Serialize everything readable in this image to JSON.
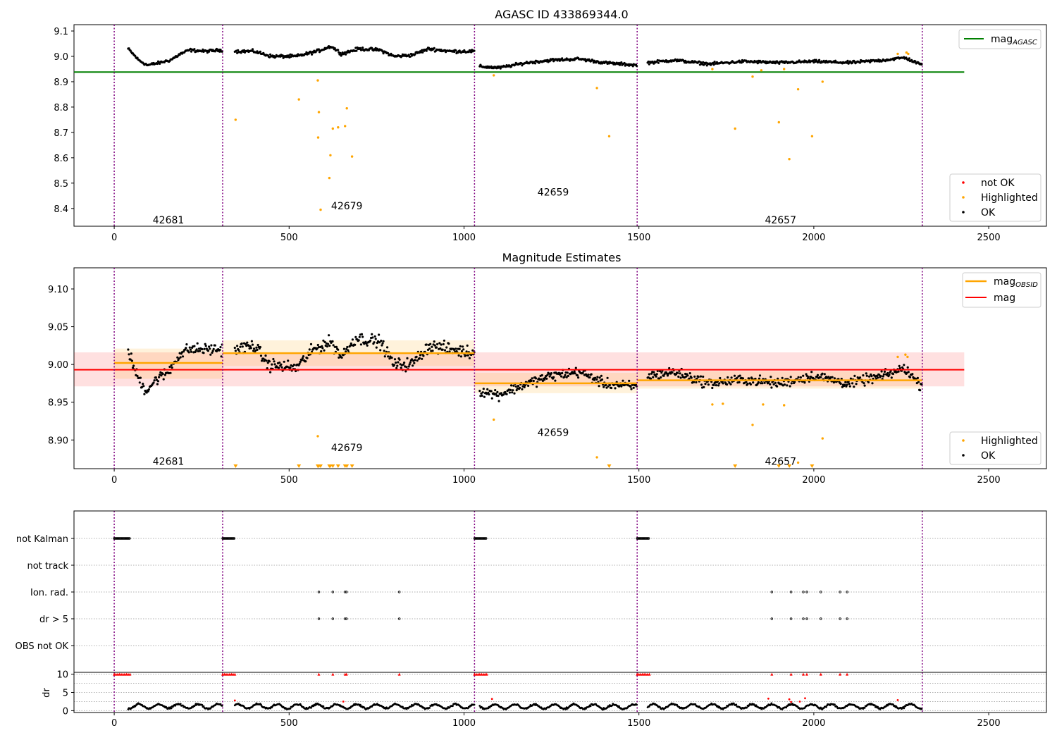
{
  "colors": {
    "ok": "#000000",
    "highlighted": "#ffa500",
    "not_ok": "#ff0000",
    "agasc_line": "#008000",
    "mag_line": "#ff0000",
    "obsid_line": "#ffa500",
    "obs_boundary": "#800080",
    "grid": "#b0b0b0"
  },
  "chart_data": [
    {
      "type": "scatter",
      "title": "AGASC ID 433869344.0",
      "xlim": [
        -115,
        2665
      ],
      "ylim": [
        8.33,
        9.125
      ],
      "xticks": [
        "0",
        "500",
        "1000",
        "1500",
        "2000",
        "2500"
      ],
      "yticks": [
        "8.4",
        "8.5",
        "8.6",
        "8.7",
        "8.8",
        "8.9",
        "9.0",
        "9.1"
      ],
      "grid": false,
      "reference_lines": [
        {
          "name": "mag_AGASC",
          "y": 8.938,
          "x_range": [
            -115,
            2430
          ],
          "color": "#008000"
        }
      ],
      "observation_boundaries": [
        0,
        310,
        1030,
        1495,
        2310
      ],
      "observation_labels": [
        {
          "text": "42681",
          "x": 155,
          "y": 8.355
        },
        {
          "text": "42679",
          "x": 665,
          "y": 8.41
        },
        {
          "text": "42659",
          "x": 1255,
          "y": 8.465
        },
        {
          "text": "42657",
          "x": 1905,
          "y": 8.355
        }
      ],
      "series_ok_segments": [
        {
          "x_range": [
            40,
            310
          ],
          "anchors": [
            [
              40,
              9.03
            ],
            [
              70,
              8.985
            ],
            [
              95,
              8.965
            ],
            [
              130,
              8.975
            ],
            [
              160,
              8.985
            ],
            [
              190,
              9.01
            ],
            [
              215,
              9.025
            ],
            [
              260,
              9.02
            ],
            [
              310,
              9.025
            ]
          ],
          "noise": 0.008
        },
        {
          "x_range": [
            345,
            1030
          ],
          "anchors": [
            [
              345,
              9.02
            ],
            [
              400,
              9.02
            ],
            [
              450,
              9.0
            ],
            [
              520,
              9.0
            ],
            [
              580,
              9.02
            ],
            [
              620,
              9.04
            ],
            [
              650,
              9.01
            ],
            [
              700,
              9.03
            ],
            [
              760,
              9.025
            ],
            [
              800,
              9.0
            ],
            [
              850,
              9.005
            ],
            [
              900,
              9.03
            ],
            [
              960,
              9.02
            ],
            [
              1030,
              9.02
            ]
          ],
          "noise": 0.009
        },
        {
          "x_range": [
            1045,
            1495
          ],
          "anchors": [
            [
              1045,
              8.96
            ],
            [
              1100,
              8.955
            ],
            [
              1180,
              8.975
            ],
            [
              1250,
              8.985
            ],
            [
              1330,
              8.99
            ],
            [
              1400,
              8.975
            ],
            [
              1495,
              8.965
            ]
          ],
          "noise": 0.008
        },
        {
          "x_range": [
            1525,
            2310
          ],
          "anchors": [
            [
              1525,
              8.975
            ],
            [
              1600,
              8.985
            ],
            [
              1700,
              8.97
            ],
            [
              1800,
              8.98
            ],
            [
              1900,
              8.975
            ],
            [
              2000,
              8.98
            ],
            [
              2100,
              8.975
            ],
            [
              2200,
              8.985
            ],
            [
              2260,
              8.995
            ],
            [
              2310,
              8.965
            ]
          ],
          "noise": 0.008
        }
      ],
      "series_highlighted": [
        [
          347,
          8.75
        ],
        [
          528,
          8.83
        ],
        [
          582,
          8.905
        ],
        [
          583,
          8.68
        ],
        [
          585,
          8.78
        ],
        [
          590,
          8.395
        ],
        [
          615,
          8.52
        ],
        [
          618,
          8.61
        ],
        [
          625,
          8.715
        ],
        [
          640,
          8.72
        ],
        [
          660,
          8.725
        ],
        [
          665,
          8.795
        ],
        [
          680,
          8.605
        ],
        [
          1085,
          8.925
        ],
        [
          1380,
          8.875
        ],
        [
          1415,
          8.685
        ],
        [
          1710,
          8.95
        ],
        [
          1775,
          8.715
        ],
        [
          1825,
          8.92
        ],
        [
          1850,
          8.945
        ],
        [
          1900,
          8.74
        ],
        [
          1915,
          8.95
        ],
        [
          1930,
          8.595
        ],
        [
          1955,
          8.87
        ],
        [
          1995,
          8.685
        ],
        [
          2025,
          8.9
        ],
        [
          2240,
          9.01
        ],
        [
          2265,
          9.015
        ],
        [
          2270,
          9.01
        ]
      ],
      "legend": [
        {
          "label": "mag",
          "subscript": "AGASC",
          "position": "top-right"
        },
        {
          "label": "not OK",
          "position": "bottom-right"
        },
        {
          "label": "Highlighted",
          "position": "bottom-right"
        },
        {
          "label": "OK",
          "position": "bottom-right"
        }
      ]
    },
    {
      "type": "scatter",
      "title": "Magnitude Estimates",
      "xlim": [
        -115,
        2665
      ],
      "ylim": [
        8.862,
        9.128
      ],
      "xticks": [
        "0",
        "500",
        "1000",
        "1500",
        "2000",
        "2500"
      ],
      "yticks": [
        "8.90",
        "8.95",
        "9.00",
        "9.05",
        "9.10"
      ],
      "grid": false,
      "mag_line": {
        "name": "mag",
        "y": 8.993,
        "band": [
          8.971,
          9.016
        ],
        "x_range": [
          -115,
          2430
        ]
      },
      "mag_obsid": [
        {
          "x_range": [
            0,
            310
          ],
          "y": 9.002,
          "band": [
            8.981,
            9.021
          ]
        },
        {
          "x_range": [
            310,
            1030
          ],
          "y": 9.015,
          "band": [
            8.998,
            9.032
          ]
        },
        {
          "x_range": [
            1030,
            1495
          ],
          "y": 8.975,
          "band": [
            8.962,
            8.989
          ]
        },
        {
          "x_range": [
            1495,
            2310
          ],
          "y": 8.979,
          "band": [
            8.968,
            8.991
          ]
        }
      ],
      "observation_labels": [
        {
          "text": "42681",
          "x": 155,
          "y": 8.872
        },
        {
          "text": "42679",
          "x": 665,
          "y": 8.89
        },
        {
          "text": "42659",
          "x": 1255,
          "y": 8.91
        },
        {
          "text": "42657",
          "x": 1905,
          "y": 8.872
        }
      ],
      "series_ok_segments": [
        {
          "x_range": [
            40,
            310
          ],
          "anchors": [
            [
              40,
              9.02
            ],
            [
              60,
              8.99
            ],
            [
              90,
              8.965
            ],
            [
              120,
              8.98
            ],
            [
              155,
              8.99
            ],
            [
              180,
              9.01
            ],
            [
              210,
              9.02
            ],
            [
              250,
              9.02
            ],
            [
              310,
              9.02
            ]
          ],
          "noise": 0.01
        },
        {
          "x_range": [
            345,
            1030
          ],
          "anchors": [
            [
              345,
              9.02
            ],
            [
              400,
              9.025
            ],
            [
              440,
              9.0
            ],
            [
              520,
              8.995
            ],
            [
              570,
              9.02
            ],
            [
              620,
              9.03
            ],
            [
              650,
              9.01
            ],
            [
              690,
              9.035
            ],
            [
              760,
              9.03
            ],
            [
              800,
              9.0
            ],
            [
              850,
              9.0
            ],
            [
              900,
              9.025
            ],
            [
              960,
              9.02
            ],
            [
              1030,
              9.015
            ]
          ],
          "noise": 0.011
        },
        {
          "x_range": [
            1045,
            1495
          ],
          "anchors": [
            [
              1045,
              8.965
            ],
            [
              1100,
              8.96
            ],
            [
              1180,
              8.975
            ],
            [
              1250,
              8.985
            ],
            [
              1330,
              8.99
            ],
            [
              1400,
              8.975
            ],
            [
              1495,
              8.97
            ]
          ],
          "noise": 0.009
        },
        {
          "x_range": [
            1525,
            2310
          ],
          "anchors": [
            [
              1525,
              8.985
            ],
            [
              1600,
              8.99
            ],
            [
              1700,
              8.975
            ],
            [
              1800,
              8.98
            ],
            [
              1900,
              8.975
            ],
            [
              2000,
              8.985
            ],
            [
              2100,
              8.975
            ],
            [
              2200,
              8.985
            ],
            [
              2260,
              8.995
            ],
            [
              2310,
              8.97
            ]
          ],
          "noise": 0.009
        }
      ],
      "series_highlighted": [
        [
          582,
          8.905
        ],
        [
          1085,
          8.927
        ],
        [
          1380,
          8.877
        ],
        [
          1710,
          8.947
        ],
        [
          1740,
          8.948
        ],
        [
          1825,
          8.92
        ],
        [
          1855,
          8.947
        ],
        [
          1915,
          8.946
        ],
        [
          1955,
          8.87
        ],
        [
          2025,
          8.902
        ],
        [
          2240,
          9.01
        ],
        [
          2262,
          9.013
        ],
        [
          2268,
          9.01
        ]
      ],
      "offscale_markers_x": [
        347,
        528,
        582,
        585,
        590,
        615,
        618,
        625,
        640,
        660,
        665,
        680,
        1415,
        1775,
        1900,
        1930,
        1995
      ],
      "legend": [
        {
          "label": "mag",
          "subscript": "OBSID",
          "position": "top-right"
        },
        {
          "label": "mag",
          "position": "top-right"
        },
        {
          "label": "Highlighted",
          "position": "bottom-right"
        },
        {
          "label": "OK",
          "position": "bottom-right"
        }
      ]
    },
    {
      "type": "scatter",
      "title": "",
      "xlim": [
        -115,
        2665
      ],
      "xticks": [
        "0",
        "500",
        "1000",
        "1500",
        "2000",
        "2500"
      ],
      "categories": [
        "not Kalman",
        "not track",
        "Ion. rad.",
        "dr > 5",
        "OBS not OK"
      ],
      "flags": {
        "not Kalman": [
          [
            0,
            45
          ],
          [
            310,
            345
          ],
          [
            1030,
            1065
          ],
          [
            1495,
            1530
          ]
        ],
        "not track": [],
        "Ion. rad.": [
          585,
          625,
          660,
          664,
          815,
          1880,
          1935,
          1970,
          1980,
          2020,
          2075,
          2095
        ],
        "dr > 5": [
          585,
          625,
          660,
          664,
          815,
          1880,
          1935,
          1970,
          1980,
          2020,
          2075,
          2095
        ],
        "OBS not OK": []
      }
    },
    {
      "type": "scatter",
      "ylabel": "dr",
      "xlim": [
        -115,
        2665
      ],
      "ylim": [
        -0.5,
        10.5
      ],
      "xticks": [
        "0",
        "500",
        "1000",
        "1500",
        "2000",
        "2500"
      ],
      "yticks": [
        "0",
        "5",
        "10"
      ],
      "grid": true,
      "series_ok_segments": [
        {
          "x_range": [
            40,
            310
          ],
          "mean": 1.2,
          "spread": 0.6
        },
        {
          "x_range": [
            345,
            1030
          ],
          "mean": 1.2,
          "spread": 0.6
        },
        {
          "x_range": [
            1045,
            1495
          ],
          "mean": 1.1,
          "spread": 0.6
        },
        {
          "x_range": [
            1525,
            2310
          ],
          "mean": 1.2,
          "spread": 0.6
        }
      ],
      "outliers": [
        [
          345,
          2.8
        ],
        [
          655,
          2.5
        ],
        [
          1080,
          3.2
        ],
        [
          1870,
          3.3
        ],
        [
          1930,
          3.1
        ],
        [
          1935,
          2.4
        ],
        [
          1960,
          2.5
        ],
        [
          1975,
          3.4
        ],
        [
          2240,
          2.9
        ]
      ],
      "red_at_10": [
        0,
        5,
        10,
        15,
        20,
        25,
        30,
        35,
        40,
        45,
        310,
        315,
        320,
        325,
        330,
        335,
        340,
        345,
        585,
        625,
        660,
        664,
        815,
        1030,
        1035,
        1040,
        1045,
        1050,
        1055,
        1060,
        1065,
        1495,
        1500,
        1505,
        1510,
        1515,
        1520,
        1525,
        1530,
        1880,
        1935,
        1970,
        1980,
        2020,
        2075,
        2095
      ]
    }
  ]
}
